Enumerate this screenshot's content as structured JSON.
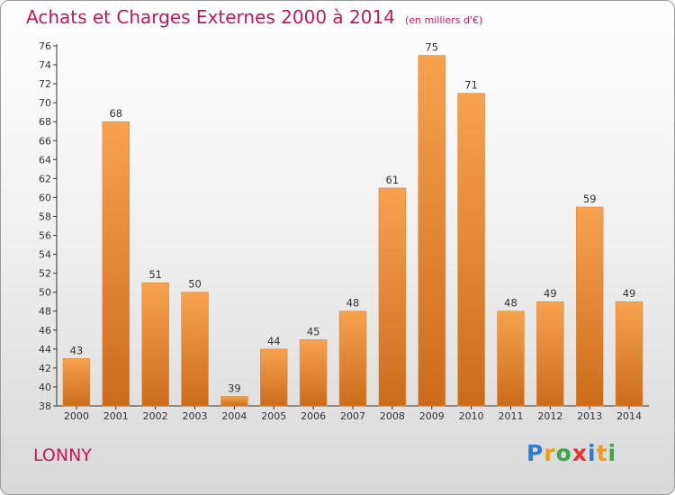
{
  "header": {
    "title": "Achats et Charges Externes 2000 à 2014",
    "unit": "(en milliers d'€)"
  },
  "footer": {
    "city": "LONNY",
    "logo_letters": [
      "P",
      "r",
      "o",
      "x",
      "i",
      "t",
      "i"
    ]
  },
  "chart_data": {
    "type": "bar",
    "title": "Achats et Charges Externes 2000 à 2014",
    "subtitle": "(en milliers d'€)",
    "categories": [
      "2000",
      "2001",
      "2002",
      "2003",
      "2004",
      "2005",
      "2006",
      "2007",
      "2008",
      "2009",
      "2010",
      "2011",
      "2012",
      "2013",
      "2014"
    ],
    "values": [
      43,
      68,
      51,
      50,
      39,
      44,
      45,
      48,
      61,
      75,
      71,
      48,
      49,
      59,
      49
    ],
    "ylim": [
      38,
      76
    ],
    "yticks": [
      38,
      40,
      42,
      44,
      46,
      48,
      50,
      52,
      54,
      56,
      58,
      60,
      62,
      64,
      66,
      68,
      70,
      72,
      74,
      76
    ],
    "grid": false,
    "xlabel": "",
    "ylabel": "",
    "colors": {
      "bar_light": "#f7a24f",
      "bar_dark": "#cc6c1b",
      "text_accent": "#c2185b"
    }
  }
}
